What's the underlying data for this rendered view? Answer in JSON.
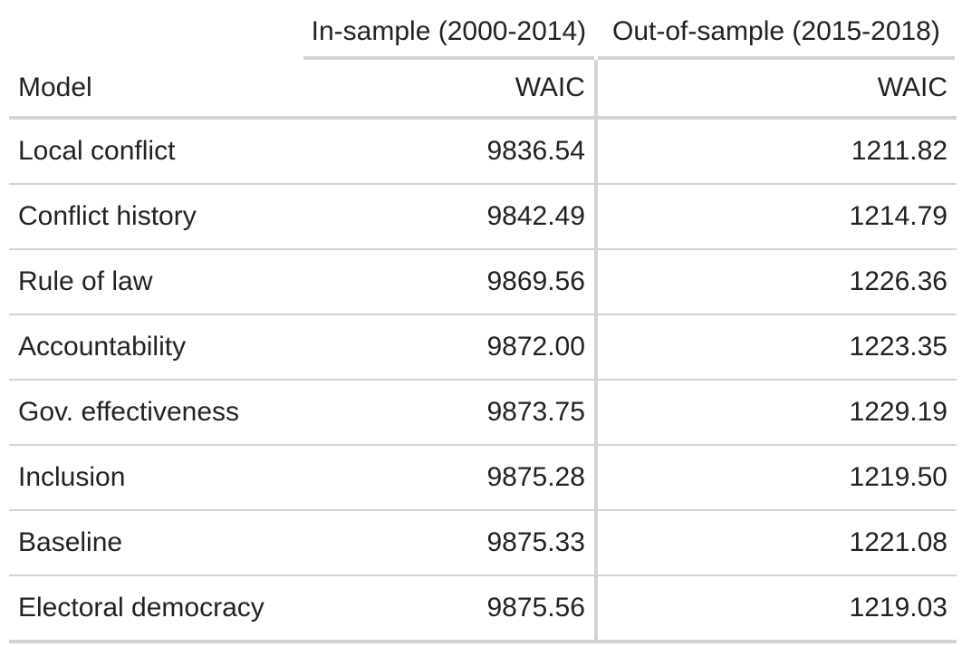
{
  "table": {
    "spanners": {
      "in_sample": "In-sample (2000-2014)",
      "out_of_sample": "Out-of-sample (2015-2018)"
    },
    "columns": {
      "model": "Model",
      "in_waic": "WAIC",
      "out_waic": "WAIC"
    },
    "rows": [
      {
        "model": "Local conflict",
        "in_waic": "9836.54",
        "out_waic": "1211.82"
      },
      {
        "model": "Conflict history",
        "in_waic": "9842.49",
        "out_waic": "1214.79"
      },
      {
        "model": "Rule of law",
        "in_waic": "9869.56",
        "out_waic": "1226.36"
      },
      {
        "model": "Accountability",
        "in_waic": "9872.00",
        "out_waic": "1223.35"
      },
      {
        "model": "Gov. effectiveness",
        "in_waic": "9873.75",
        "out_waic": "1229.19"
      },
      {
        "model": "Inclusion",
        "in_waic": "9875.28",
        "out_waic": "1219.50"
      },
      {
        "model": "Baseline",
        "in_waic": "9875.33",
        "out_waic": "1221.08"
      },
      {
        "model": "Electoral democracy",
        "in_waic": "9875.56",
        "out_waic": "1219.03"
      }
    ]
  }
}
